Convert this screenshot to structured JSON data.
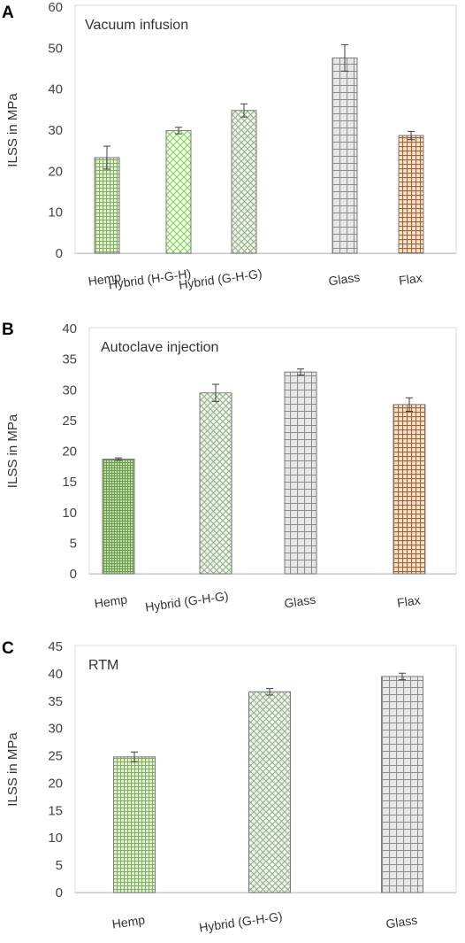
{
  "chart_data": [
    {
      "type": "bar",
      "panel_label": "A",
      "title": "Vacuum infusion",
      "ylabel": "ILSS in MPa",
      "ylim": [
        0,
        60
      ],
      "yticks": [
        0,
        10,
        20,
        30,
        40,
        50,
        60
      ],
      "categories": [
        "Hemp",
        "Hybrid (H-G-H)",
        "Hybrid (G-H-G)",
        "Glass",
        "Flax"
      ],
      "values": [
        23.3,
        29.9,
        34.8,
        47.6,
        28.7
      ],
      "errors": [
        2.8,
        0.8,
        1.6,
        3.2,
        1.0
      ],
      "patterns": [
        "pat-hemp",
        "pat-hybrid-hgh",
        "pat-hybrid-ghg",
        "pat-glass",
        "pat-flax"
      ],
      "colors": {
        "hemp": "#7fae5f",
        "hybrid_hgh": "#8bd36a",
        "hybrid_ghg": "#8fb07a",
        "glass": "#8c8c8c",
        "flax": "#a0623a"
      },
      "grid": false
    },
    {
      "type": "bar",
      "panel_label": "B",
      "title": "Autoclave injection",
      "ylabel": "ILSS in MPa",
      "ylim": [
        0,
        40
      ],
      "yticks": [
        0,
        5,
        10,
        15,
        20,
        25,
        30,
        35,
        40
      ],
      "categories": [
        "Hemp",
        "Hybrid (G-H-G)",
        "Glass",
        "Flax"
      ],
      "values": [
        18.7,
        29.5,
        32.9,
        27.6
      ],
      "errors": [
        0.2,
        1.4,
        0.5,
        1.1
      ],
      "patterns": [
        "pat-hemp-dense",
        "pat-hybrid-ghg",
        "pat-glass",
        "pat-flax"
      ],
      "grid": false
    },
    {
      "type": "bar",
      "panel_label": "C",
      "title": "RTM",
      "ylabel": "ILSS in MPa",
      "ylim": [
        0,
        45
      ],
      "yticks": [
        0,
        5,
        10,
        15,
        20,
        25,
        30,
        35,
        40,
        45
      ],
      "categories": [
        "Hemp",
        "Hybrid (G-H-G)",
        "Glass"
      ],
      "values": [
        24.8,
        36.7,
        39.5
      ],
      "errors": [
        0.9,
        0.6,
        0.6
      ],
      "patterns": [
        "pat-hemp",
        "pat-hybrid-ghg",
        "pat-glass"
      ],
      "grid": false
    }
  ]
}
